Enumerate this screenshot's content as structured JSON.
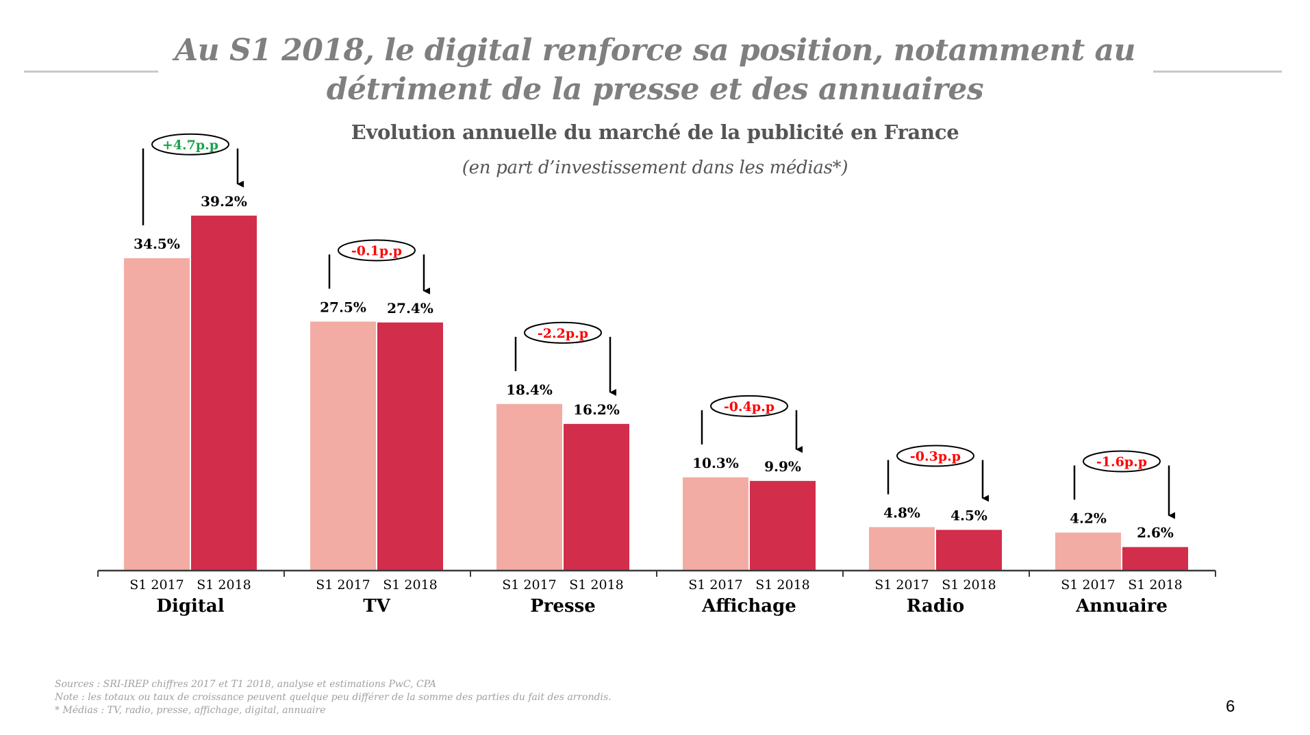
{
  "slide": {
    "title_line1": "Au S1 2018, le digital renforce sa position, notamment au",
    "title_line2": "détriment de la presse et des annuaires",
    "subtitle": "Evolution annuelle du marché de la publicité en France",
    "subtitle_note": "(en part d’investissement dans les médias*)",
    "footnotes": [
      "Sources : SRI-IREP chiffres 2017 et T1 2018, analyse et estimations PwC, CPA",
      "Note : les totaux ou taux de croissance peuvent quelque peu différer de la somme des parties du fait des arrondis.",
      "* Médias : TV, radio, presse, affichage, digital, annuaire"
    ],
    "page_number": "6"
  },
  "colors": {
    "s1_2017": "#f2aca4",
    "s1_2018": "#d22d4b",
    "positive_delta": "#1aa34a",
    "negative_delta": "#ff0000"
  },
  "chart_data": {
    "type": "bar",
    "title": "Evolution annuelle du marché de la publicité en France",
    "subtitle": "(en part d’investissement dans les médias*)",
    "xlabel": "",
    "ylabel": "",
    "unit": "%",
    "ylim": [
      0,
      40
    ],
    "grid": false,
    "categories": [
      "Digital",
      "TV",
      "Presse",
      "Affichage",
      "Radio",
      "Annuaire"
    ],
    "series": [
      {
        "name": "S1 2017",
        "values": [
          34.5,
          27.5,
          18.4,
          10.3,
          4.8,
          4.2
        ],
        "labels": [
          "34.5%",
          "27.5%",
          "18.4%",
          "10.3%",
          "4.8%",
          "4.2%"
        ]
      },
      {
        "name": "S1 2018",
        "values": [
          39.2,
          27.4,
          16.2,
          9.9,
          4.5,
          2.6
        ],
        "labels": [
          "39.2%",
          "27.4%",
          "16.2%",
          "9.9%",
          "4.5%",
          "2.6%"
        ]
      }
    ],
    "annotations": [
      {
        "category": "Digital",
        "text": "+4.7p.p",
        "direction": "up"
      },
      {
        "category": "TV",
        "text": "-0.1p.p",
        "direction": "down"
      },
      {
        "category": "Presse",
        "text": "-2.2p.p",
        "direction": "down"
      },
      {
        "category": "Affichage",
        "text": "-0.4p.p",
        "direction": "down"
      },
      {
        "category": "Radio",
        "text": "-0.3p.p",
        "direction": "down"
      },
      {
        "category": "Annuaire",
        "text": "-1.6p.p",
        "direction": "down"
      }
    ]
  }
}
